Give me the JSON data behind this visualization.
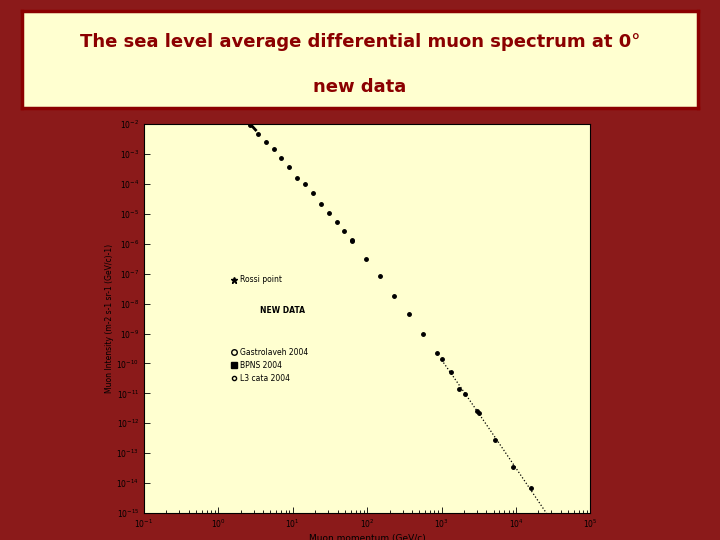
{
  "title_line1": "The sea level average differential muon spectrum at 0°",
  "title_line2": "new data",
  "title_color": "#8B0000",
  "title_bg_color": "#FFFFD0",
  "title_border_color": "#8B0000",
  "bg_color": "#8B1A1A",
  "plot_bg_color": "#FFFFD0",
  "xlabel": "Muon momentum (GeV/c)",
  "ylabel": "Muon Intensity (m-2 s-1 sr-1 (GeV/c)-1)",
  "xmin": 0.1,
  "xmax": 100000.0,
  "ymin": 1e-15,
  "ymax": 0.01,
  "figwidth": 7.2,
  "figheight": 5.4,
  "dpi": 100
}
